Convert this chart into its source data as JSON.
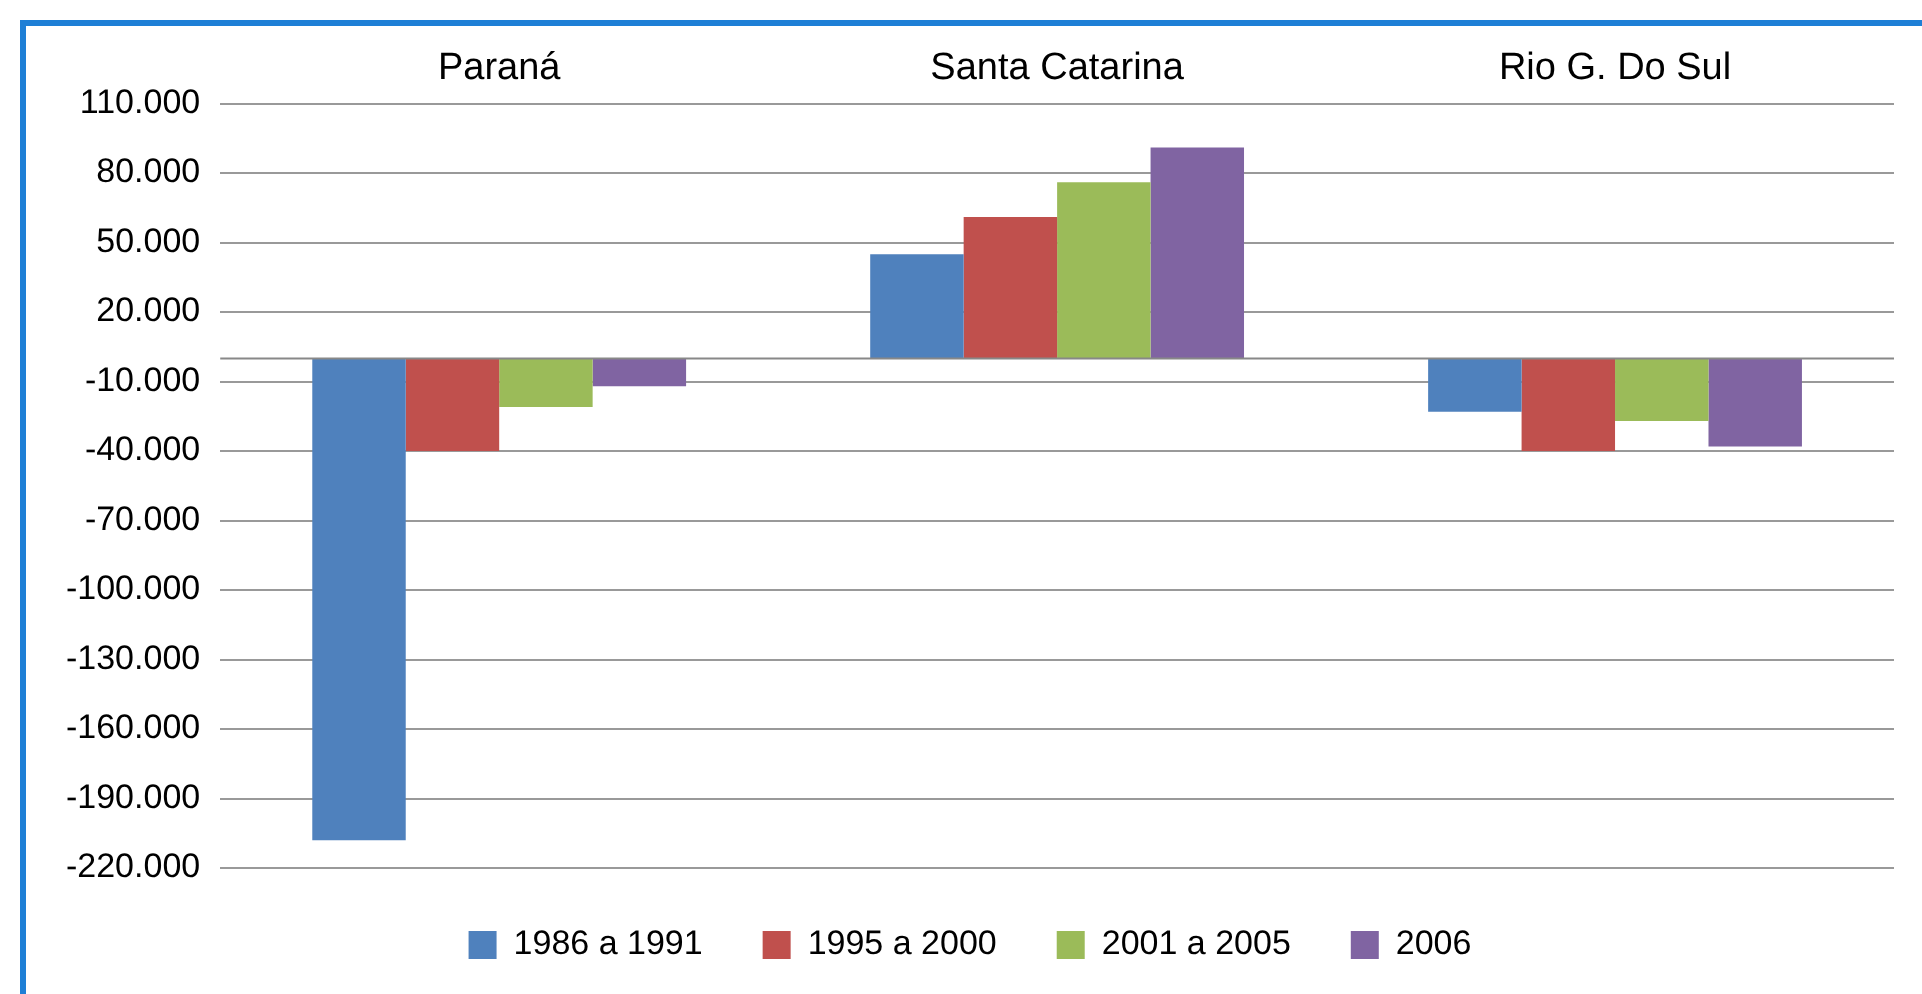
{
  "chart_data": {
    "type": "bar",
    "categories": [
      "Paraná",
      "Santa Catarina",
      "Rio G. Do Sul"
    ],
    "series": [
      {
        "name": "1986 a 1991",
        "color": "#4f81bd",
        "values": [
          -208000,
          45000,
          -23000
        ]
      },
      {
        "name": "1995 a 2000",
        "color": "#c0504d",
        "values": [
          -40000,
          61000,
          -40000
        ]
      },
      {
        "name": "2001 a 2005",
        "color": "#9bbb59",
        "values": [
          -21000,
          76000,
          -27000
        ]
      },
      {
        "name": "2006",
        "color": "#8064a2",
        "values": [
          -12000,
          91000,
          -38000
        ]
      }
    ],
    "ylim": [
      -220000,
      110000
    ],
    "yticks": [
      {
        "value": 110000,
        "label": "110.000"
      },
      {
        "value": 80000,
        "label": "80.000"
      },
      {
        "value": 50000,
        "label": "50.000"
      },
      {
        "value": 20000,
        "label": "20.000"
      },
      {
        "value": -10000,
        "label": "-10.000"
      },
      {
        "value": -40000,
        "label": "-40.000"
      },
      {
        "value": -70000,
        "label": "-70.000"
      },
      {
        "value": -100000,
        "label": "-100.000"
      },
      {
        "value": -130000,
        "label": "-130.000"
      },
      {
        "value": -160000,
        "label": "-160.000"
      },
      {
        "value": -190000,
        "label": "-190.000"
      },
      {
        "value": -220000,
        "label": "-220.000"
      }
    ],
    "grid": "y",
    "legend": "bottom"
  }
}
